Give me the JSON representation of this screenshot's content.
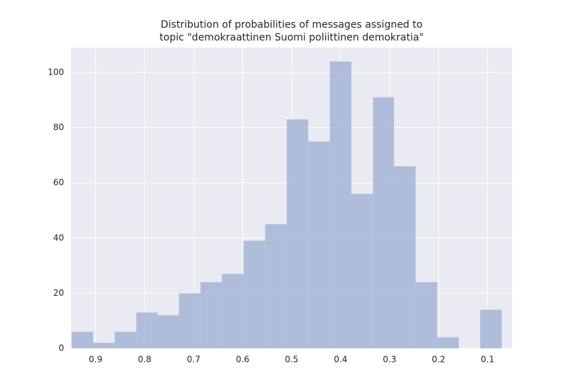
{
  "chart_data": {
    "type": "histogram",
    "title": [
      "Distribution of probabilities of messages assigned to",
      " topic \"demokraattinen Suomi poliittinen demokratia\""
    ],
    "bins": [
      0.071,
      0.115,
      0.159,
      0.203,
      0.247,
      0.291,
      0.334,
      0.378,
      0.422,
      0.466,
      0.51,
      0.554,
      0.598,
      0.642,
      0.686,
      0.73,
      0.773,
      0.817,
      0.861,
      0.905,
      0.949
    ],
    "values": [
      14,
      0,
      4,
      24,
      66,
      91,
      56,
      104,
      75,
      83,
      45,
      39,
      27,
      24,
      20,
      12,
      13,
      6,
      2,
      6
    ],
    "color": "#a9b8d7",
    "xlim": [
      0.95,
      0.05
    ],
    "xticks": [
      0.9,
      0.8,
      0.7,
      0.6,
      0.5,
      0.4,
      0.3,
      0.2,
      0.1
    ],
    "ylim": [
      0,
      109
    ],
    "yticks": [
      0,
      20,
      40,
      60,
      80,
      100
    ],
    "grid": true
  }
}
